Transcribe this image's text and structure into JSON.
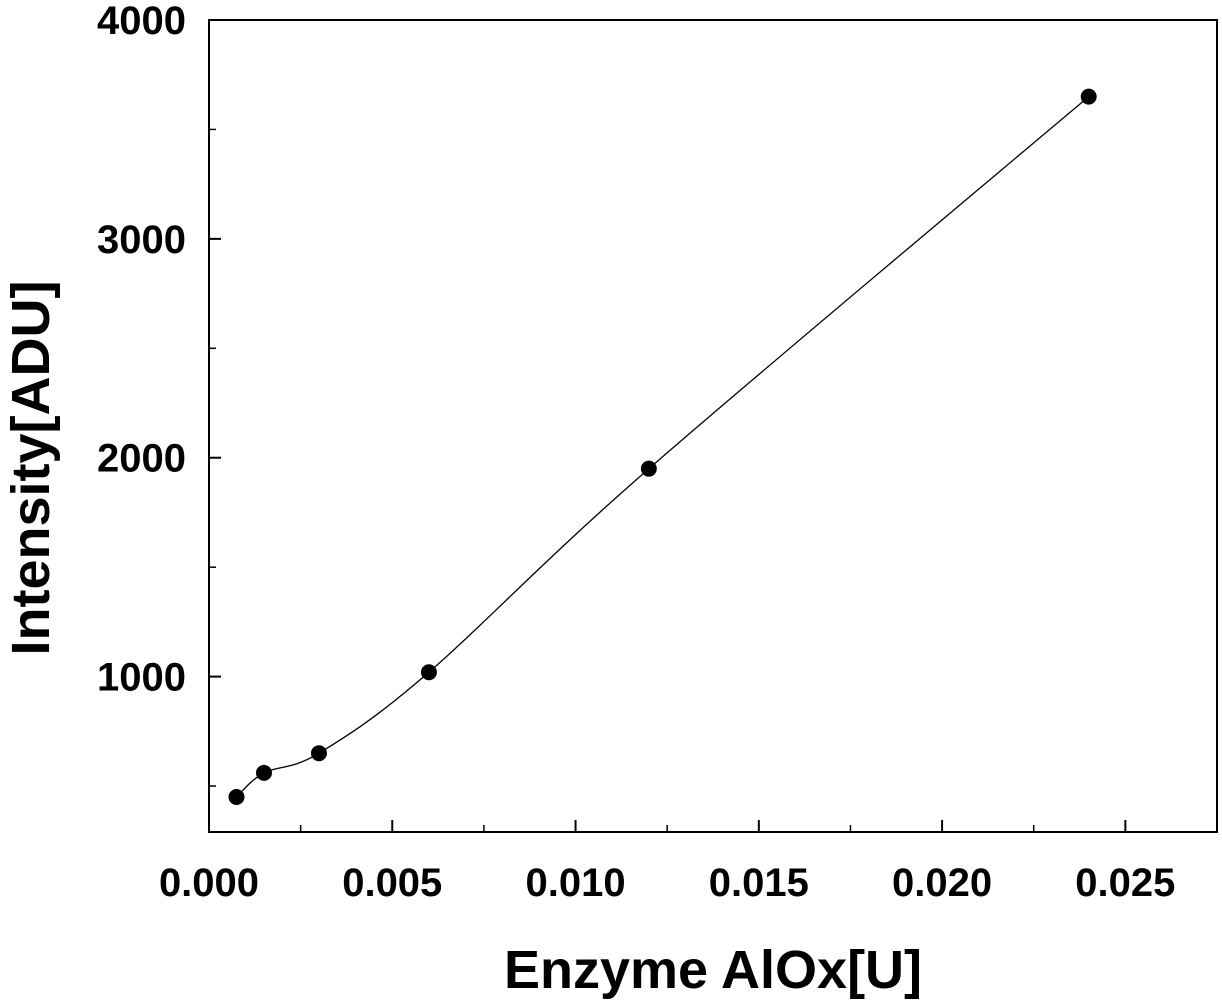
{
  "chart_data": {
    "type": "scatter",
    "title": "",
    "xlabel": "Enzyme AlOx[U]",
    "ylabel": "Intensity[ADU]",
    "xlim": [
      0.0,
      0.0275
    ],
    "ylim": [
      290,
      4000
    ],
    "x_ticks": [
      "0.000",
      "0.005",
      "0.010",
      "0.015",
      "0.020",
      "0.025"
    ],
    "y_ticks": [
      "1000",
      "2000",
      "3000",
      "4000"
    ],
    "grid": false,
    "legend": "none",
    "smooth_line": true,
    "series": [
      {
        "x": [
          0.00075,
          0.0015,
          0.003,
          0.006,
          0.012,
          0.024
        ],
        "y": [
          450,
          560,
          650,
          1020,
          1950,
          3650
        ]
      }
    ],
    "colors": {
      "marker": "#000000",
      "line": "#000000",
      "axis": "#000000"
    }
  }
}
